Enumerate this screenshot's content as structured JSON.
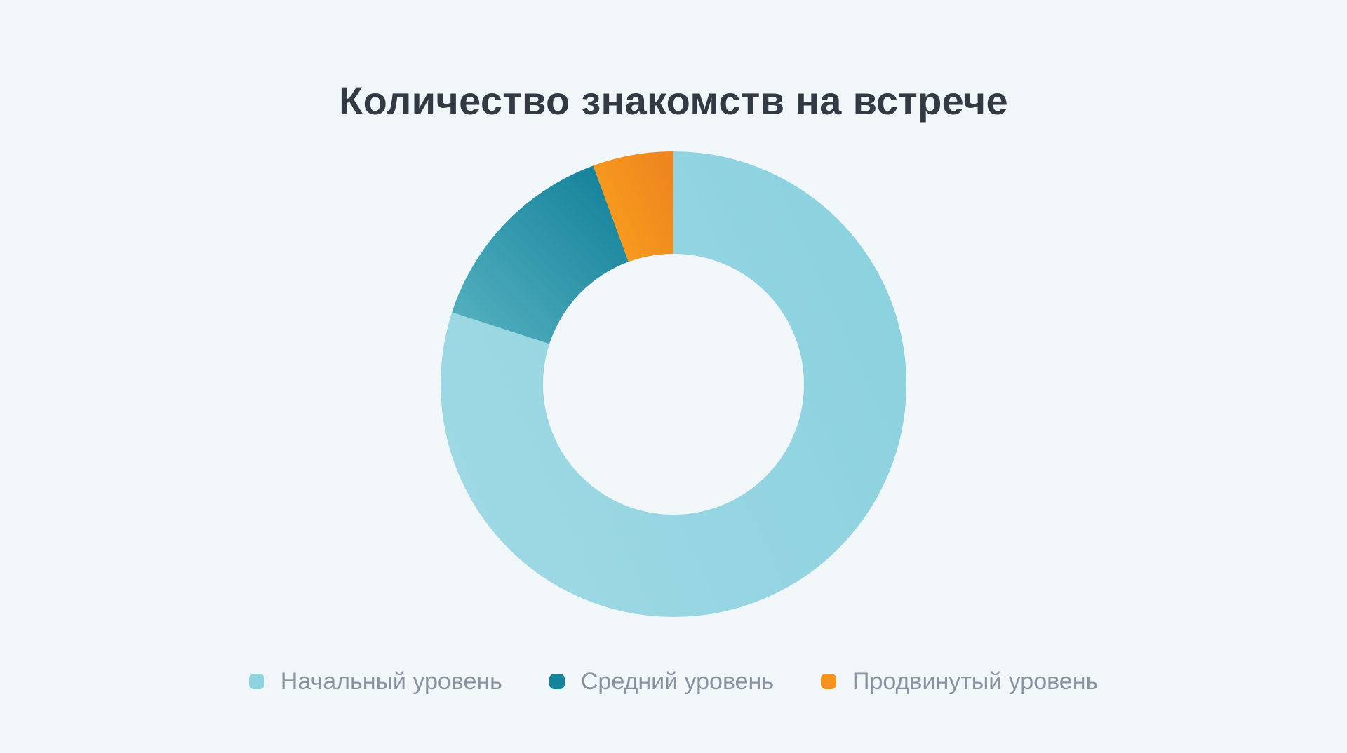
{
  "page": {
    "background_color": "#F1F6F9"
  },
  "title": {
    "text": "Количество знакомств на встрече",
    "color": "#333A44"
  },
  "chart_data": {
    "type": "pie",
    "subtype": "donut",
    "title": "Количество знакомств на встрече",
    "categories": [
      "Начальный уровень",
      "Средний уровень",
      "Продвинутый уровень"
    ],
    "values": [
      80,
      14.4,
      5.6
    ],
    "unit": "percent-of-ring (estimated from arc angles, no numeric labels shown)",
    "angles_deg": [
      288,
      52,
      20
    ],
    "start_angle": "12-o-clock",
    "direction": "clockwise",
    "inner_radius_ratio": 0.56,
    "legend_position": "bottom",
    "slice_colors": [
      "#8FD3E0",
      "#1A8CA0",
      "#F6921E"
    ],
    "slice_gradients": [
      [
        "#9ED9E4",
        "#8CD1DF"
      ],
      [
        "#58B3C1",
        "#0F7E97"
      ],
      [
        "#F9A01C",
        "#EE8520"
      ]
    ]
  },
  "legend": {
    "items": [
      {
        "label": "Начальный уровень",
        "marker_color": "#8FD3E0"
      },
      {
        "label": "Средний уровень",
        "marker_color": "#14839B"
      },
      {
        "label": "Продвинутый уровень",
        "marker_color": "#F6921E"
      }
    ]
  }
}
